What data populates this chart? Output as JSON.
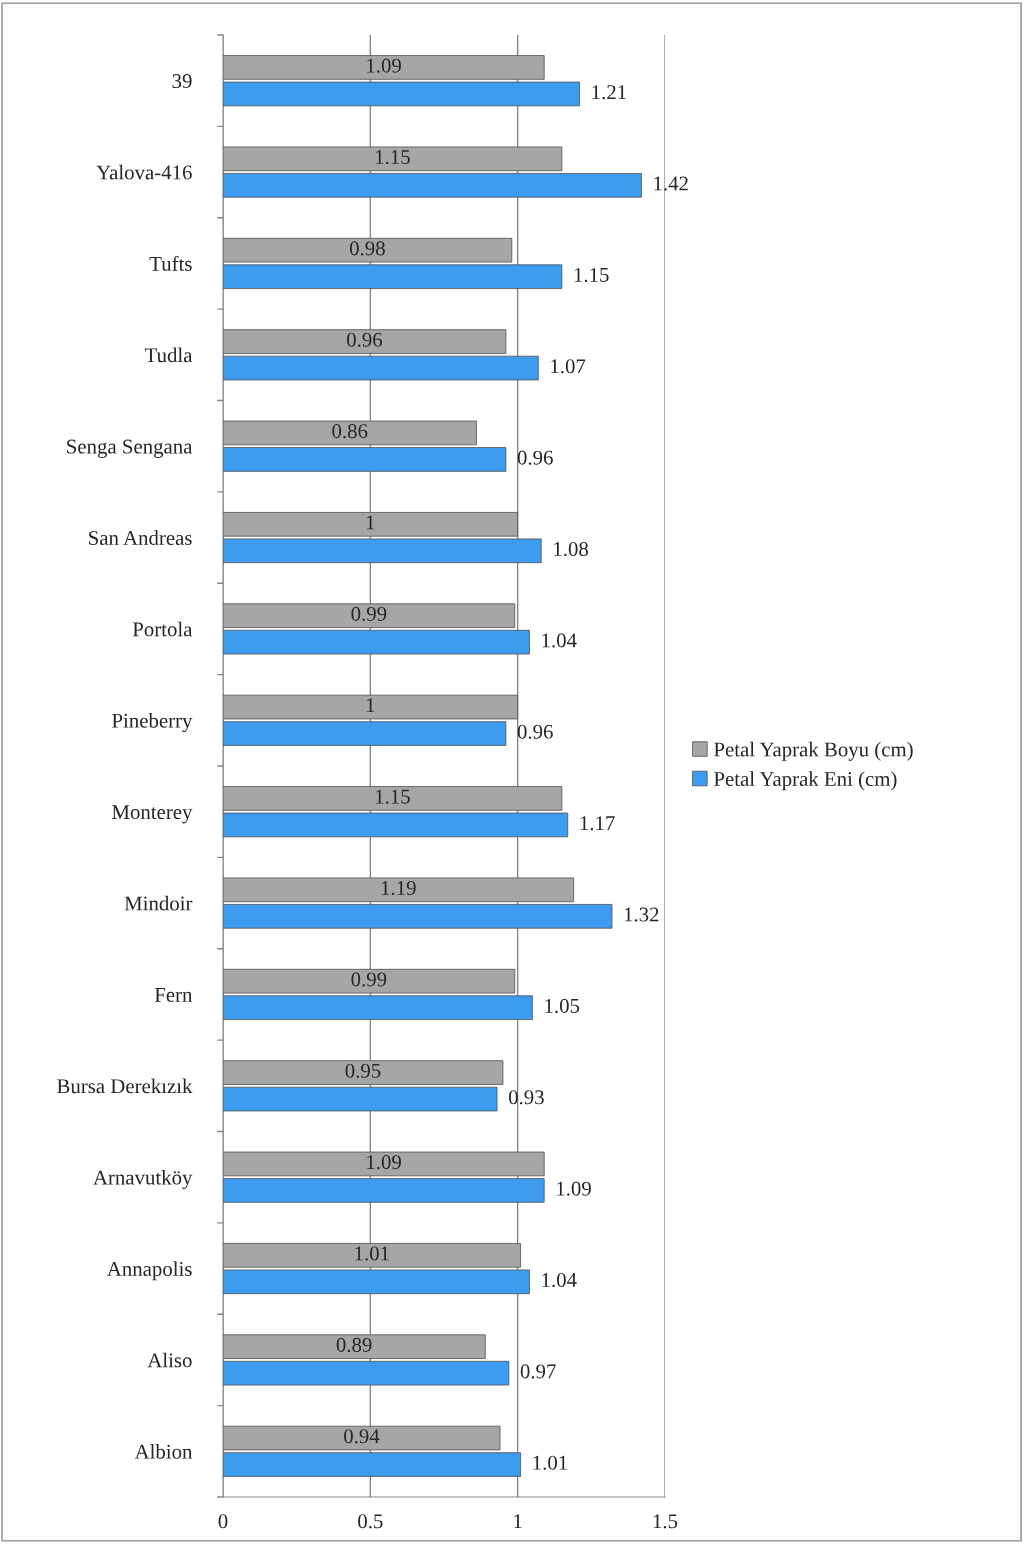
{
  "chart_data": {
    "type": "bar",
    "orientation": "horizontal",
    "categories": [
      "39",
      "Yalova-416",
      "Tufts",
      "Tudla",
      "Senga Sengana",
      "San Andreas",
      "Portola",
      "Pineberry",
      "Monterey",
      "Mindoir",
      "Fern",
      "Bursa Derekızık",
      "Arnavutköy",
      "Annapolis",
      "Aliso",
      "Albion"
    ],
    "series": [
      {
        "name": "Petal Yaprak Boyu (cm)",
        "color": "#a6a6a6",
        "values": [
          1.09,
          1.15,
          0.98,
          0.96,
          0.86,
          1,
          0.99,
          1,
          1.15,
          1.19,
          0.99,
          0.95,
          1.09,
          1.01,
          0.89,
          0.94
        ]
      },
      {
        "name": "Petal Yaprak Eni (cm)",
        "color": "#3d9bf0",
        "values": [
          1.21,
          1.42,
          1.15,
          1.07,
          0.96,
          1.08,
          1.04,
          0.96,
          1.17,
          1.32,
          1.05,
          0.93,
          1.09,
          1.04,
          0.97,
          1.01
        ]
      }
    ],
    "xlim": [
      0,
      1.5
    ],
    "xticks": [
      0,
      0.5,
      1,
      1.5
    ],
    "grid": "x",
    "legend": "right",
    "data_labels": true
  }
}
